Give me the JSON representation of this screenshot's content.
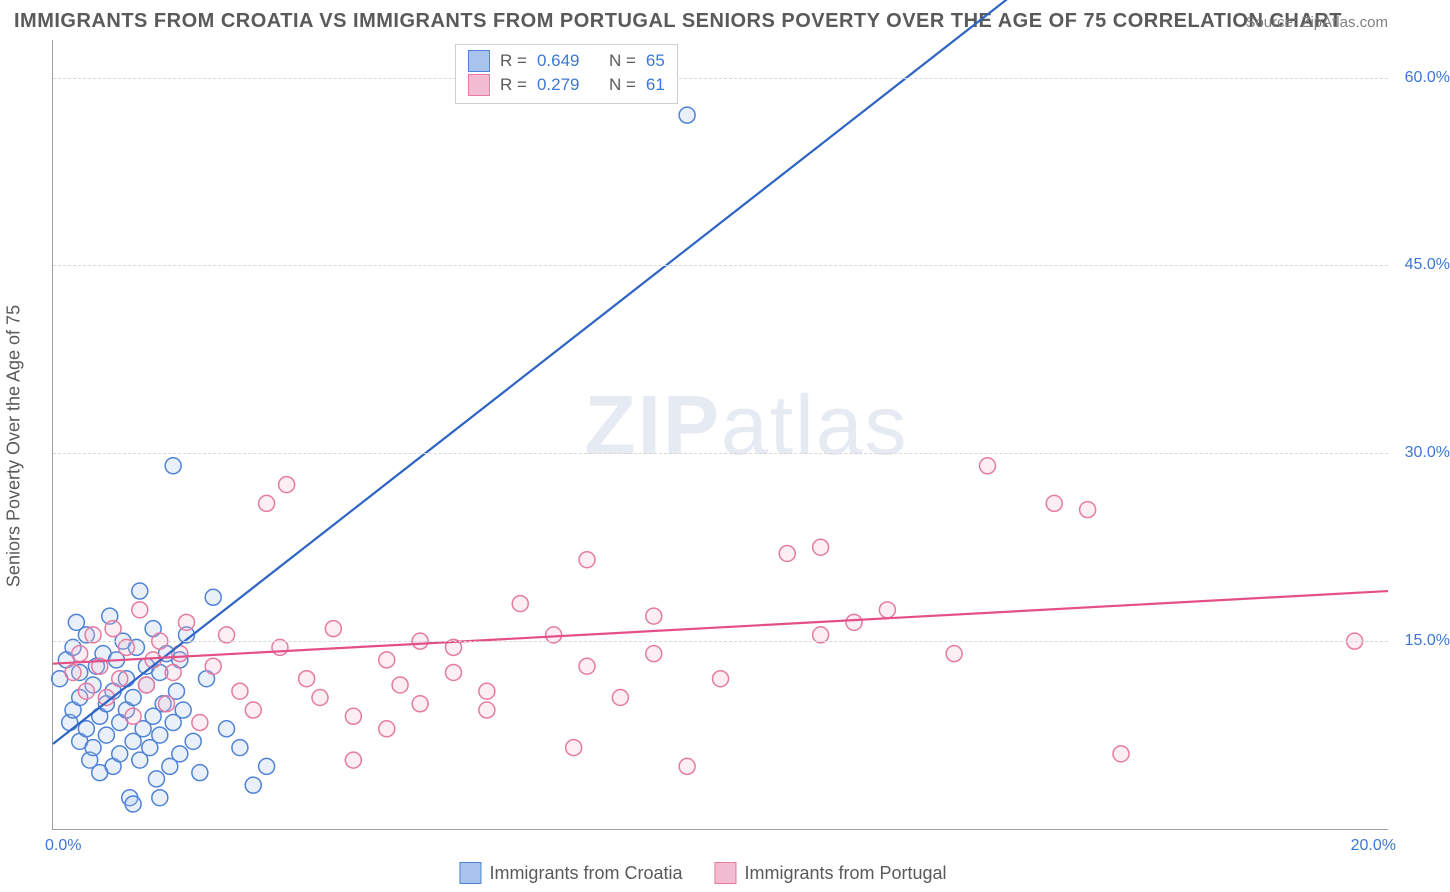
{
  "title": "IMMIGRANTS FROM CROATIA VS IMMIGRANTS FROM PORTUGAL SENIORS POVERTY OVER THE AGE OF 75 CORRELATION CHART",
  "source_label": "Source: ZipAtlas.com",
  "watermark_zip": "ZIP",
  "watermark_atlas": "atlas",
  "chart": {
    "type": "scatter",
    "ylabel": "Seniors Poverty Over the Age of 75",
    "xlim": [
      0,
      20
    ],
    "ylim": [
      0,
      63
    ],
    "x_ticks": [
      {
        "v": 0,
        "label": "0.0%"
      },
      {
        "v": 20,
        "label": "20.0%"
      }
    ],
    "y_ticks": [
      {
        "v": 15,
        "label": "15.0%"
      },
      {
        "v": 30,
        "label": "30.0%"
      },
      {
        "v": 45,
        "label": "45.0%"
      },
      {
        "v": 60,
        "label": "60.0%"
      }
    ],
    "grid_color": "#d8d8d8",
    "axis_color": "#9aa0a6",
    "background_color": "#ffffff",
    "marker_radius": 8,
    "marker_stroke_width": 1.5,
    "fill_opacity": 0.25,
    "line_width": 2.2,
    "series": [
      {
        "name": "Immigrants from Croatia",
        "color_stroke": "#4f83d6",
        "color_fill": "#a9c4ec",
        "line_color": "#2f66c4",
        "R": "0.649",
        "N": "65",
        "trend": {
          "x1": 0,
          "y1": 6.8,
          "x2": 20,
          "y2": 90
        },
        "points": [
          [
            0.1,
            12.0
          ],
          [
            0.2,
            13.5
          ],
          [
            0.25,
            8.5
          ],
          [
            0.3,
            9.5
          ],
          [
            0.3,
            14.5
          ],
          [
            0.35,
            16.5
          ],
          [
            0.4,
            7.0
          ],
          [
            0.4,
            10.5
          ],
          [
            0.4,
            12.5
          ],
          [
            0.5,
            15.5
          ],
          [
            0.5,
            8.0
          ],
          [
            0.55,
            5.5
          ],
          [
            0.6,
            11.5
          ],
          [
            0.6,
            6.5
          ],
          [
            0.65,
            13.0
          ],
          [
            0.7,
            9.0
          ],
          [
            0.7,
            4.5
          ],
          [
            0.75,
            14.0
          ],
          [
            0.8,
            7.5
          ],
          [
            0.8,
            10.0
          ],
          [
            0.85,
            17.0
          ],
          [
            0.9,
            5.0
          ],
          [
            0.9,
            11.0
          ],
          [
            0.95,
            13.5
          ],
          [
            1.0,
            6.0
          ],
          [
            1.0,
            8.5
          ],
          [
            1.05,
            15.0
          ],
          [
            1.1,
            9.5
          ],
          [
            1.1,
            12.0
          ],
          [
            1.15,
            2.5
          ],
          [
            1.2,
            7.0
          ],
          [
            1.2,
            10.5
          ],
          [
            1.25,
            14.5
          ],
          [
            1.3,
            5.5
          ],
          [
            1.3,
            19.0
          ],
          [
            1.35,
            8.0
          ],
          [
            1.4,
            11.5
          ],
          [
            1.4,
            13.0
          ],
          [
            1.45,
            6.5
          ],
          [
            1.5,
            16.0
          ],
          [
            1.5,
            9.0
          ],
          [
            1.55,
            4.0
          ],
          [
            1.6,
            12.5
          ],
          [
            1.6,
            7.5
          ],
          [
            1.65,
            10.0
          ],
          [
            1.7,
            14.0
          ],
          [
            1.75,
            5.0
          ],
          [
            1.8,
            8.5
          ],
          [
            1.8,
            29.0
          ],
          [
            1.85,
            11.0
          ],
          [
            1.9,
            6.0
          ],
          [
            1.9,
            13.5
          ],
          [
            1.95,
            9.5
          ],
          [
            2.0,
            15.5
          ],
          [
            2.1,
            7.0
          ],
          [
            2.2,
            4.5
          ],
          [
            2.3,
            12.0
          ],
          [
            2.4,
            18.5
          ],
          [
            2.6,
            8.0
          ],
          [
            2.8,
            6.5
          ],
          [
            3.0,
            3.5
          ],
          [
            3.2,
            5.0
          ],
          [
            1.2,
            2.0
          ],
          [
            1.6,
            2.5
          ],
          [
            9.5,
            57.0
          ]
        ]
      },
      {
        "name": "Immigrants from Portugal",
        "color_stroke": "#e67ba1",
        "color_fill": "#f4bcd0",
        "line_color": "#e54f88",
        "R": "0.279",
        "N": "61",
        "trend": {
          "x1": 0,
          "y1": 13.2,
          "x2": 20,
          "y2": 19.0
        },
        "points": [
          [
            0.3,
            12.5
          ],
          [
            0.4,
            14.0
          ],
          [
            0.5,
            11.0
          ],
          [
            0.6,
            15.5
          ],
          [
            0.7,
            13.0
          ],
          [
            0.8,
            10.5
          ],
          [
            0.9,
            16.0
          ],
          [
            1.0,
            12.0
          ],
          [
            1.1,
            14.5
          ],
          [
            1.2,
            9.0
          ],
          [
            1.3,
            17.5
          ],
          [
            1.4,
            11.5
          ],
          [
            1.5,
            13.5
          ],
          [
            1.6,
            15.0
          ],
          [
            1.7,
            10.0
          ],
          [
            1.8,
            12.5
          ],
          [
            1.9,
            14.0
          ],
          [
            2.0,
            16.5
          ],
          [
            2.2,
            8.5
          ],
          [
            2.4,
            13.0
          ],
          [
            2.6,
            15.5
          ],
          [
            2.8,
            11.0
          ],
          [
            3.0,
            9.5
          ],
          [
            3.2,
            26.0
          ],
          [
            3.4,
            14.5
          ],
          [
            3.5,
            27.5
          ],
          [
            3.8,
            12.0
          ],
          [
            4.0,
            10.5
          ],
          [
            4.2,
            16.0
          ],
          [
            4.5,
            9.0
          ],
          [
            4.5,
            5.5
          ],
          [
            5.0,
            13.5
          ],
          [
            5.0,
            8.0
          ],
          [
            5.2,
            11.5
          ],
          [
            5.5,
            15.0
          ],
          [
            5.5,
            10.0
          ],
          [
            6.0,
            12.5
          ],
          [
            6.0,
            14.5
          ],
          [
            6.5,
            9.5
          ],
          [
            6.5,
            11.0
          ],
          [
            7.0,
            18.0
          ],
          [
            7.5,
            15.5
          ],
          [
            7.8,
            6.5
          ],
          [
            8.0,
            13.0
          ],
          [
            8.0,
            21.5
          ],
          [
            8.5,
            10.5
          ],
          [
            9.0,
            17.0
          ],
          [
            9.0,
            14.0
          ],
          [
            9.5,
            5.0
          ],
          [
            10.0,
            12.0
          ],
          [
            11.0,
            22.0
          ],
          [
            11.5,
            15.5
          ],
          [
            11.5,
            22.5
          ],
          [
            12.0,
            16.5
          ],
          [
            12.5,
            17.5
          ],
          [
            13.5,
            14.0
          ],
          [
            14.0,
            29.0
          ],
          [
            15.0,
            26.0
          ],
          [
            15.5,
            25.5
          ],
          [
            16.0,
            6.0
          ],
          [
            19.5,
            15.0
          ]
        ]
      }
    ]
  },
  "legend_bottom": [
    {
      "label": "Immigrants from Croatia",
      "fill": "#a9c4ec",
      "stroke": "#4f83d6"
    },
    {
      "label": "Immigrants from Portugal",
      "fill": "#f4bcd0",
      "stroke": "#e67ba1"
    }
  ],
  "stats_labels": {
    "R": "R =",
    "N": "N ="
  }
}
